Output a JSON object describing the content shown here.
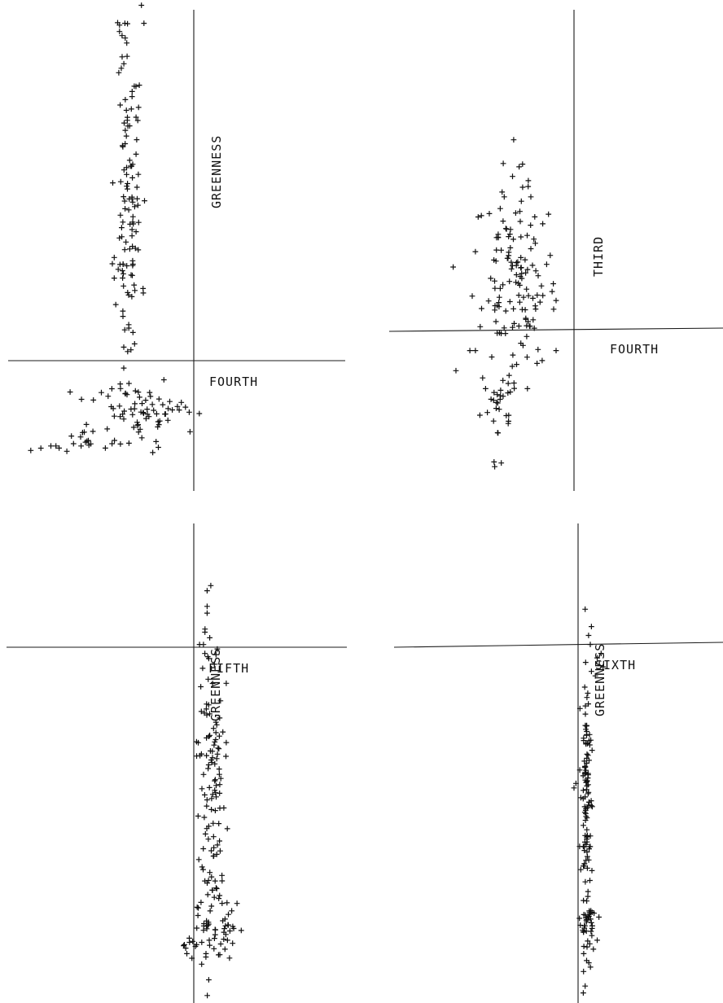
{
  "chart_data": [
    {
      "type": "scatter",
      "panel": "top-left",
      "xlabel": "FOURTH",
      "ylabel": "GREENNESS",
      "xlim": [
        -5,
        1.7
      ],
      "ylim": [
        -1.7,
        9
      ],
      "grid": false,
      "clusters": [
        {
          "cx": -2.6,
          "cy": 5.0,
          "sx": 0.13,
          "sy": 2.3,
          "n": 120
        },
        {
          "cx": -2.5,
          "cy": 0.1,
          "sx": 0.45,
          "sy": 0.45,
          "n": 55
        },
        {
          "cx": -3.2,
          "cy": -0.5,
          "sx": 0.5,
          "sy": 0.15,
          "n": 18
        },
        {
          "cx": -2.1,
          "cy": 0.05,
          "sx": 0.3,
          "sy": 0.12,
          "n": 14
        }
      ],
      "extra_points": [
        [
          -2.35,
          9.1
        ],
        [
          -2.3,
          8.7
        ],
        [
          -2.75,
          7.7
        ],
        [
          -2.8,
          7.6
        ],
        [
          -2.7,
          7.8
        ],
        [
          -4.55,
          -0.8
        ],
        [
          -4.35,
          -0.75
        ],
        [
          -4.15,
          -0.7
        ],
        [
          -4.05,
          -0.7
        ],
        [
          -3.7,
          -0.65
        ],
        [
          -3.55,
          -0.7
        ],
        [
          -1.4,
          0.05
        ],
        [
          -1.6,
          0.1
        ],
        [
          -1.2,
          0.02
        ]
      ],
      "seed": 11
    },
    {
      "type": "scatter",
      "panel": "top-right",
      "xlabel": "FOURTH",
      "ylabel": "THIRD",
      "xlim": [
        -3.5,
        2.5
      ],
      "ylim": [
        -3.6,
        3.6
      ],
      "grid": false,
      "clusters": [
        {
          "cx": -1.25,
          "cy": -0.5,
          "sx": 0.28,
          "sy": 0.7,
          "n": 135
        },
        {
          "cx": -1.5,
          "cy": -2.3,
          "sx": 0.18,
          "sy": 0.35,
          "n": 30
        }
      ],
      "extra_points": [
        [
          -1.45,
          1.3
        ],
        [
          -1.7,
          0.55
        ],
        [
          -1.9,
          0.5
        ],
        [
          -1.95,
          -0.02
        ],
        [
          -2.35,
          -0.25
        ],
        [
          -0.55,
          -0.5
        ],
        [
          -0.5,
          -0.75
        ],
        [
          -1.95,
          -1.5
        ],
        [
          -2.05,
          -1.5
        ],
        [
          -0.5,
          -1.5
        ],
        [
          -2.3,
          -1.8
        ],
        [
          -0.75,
          -1.65
        ]
      ],
      "seed": 23
    },
    {
      "type": "scatter",
      "panel": "bottom-left",
      "xlabel": "FIFTH",
      "ylabel": "GREENNESS",
      "xlim": [
        -5,
        1.7
      ],
      "ylim": [
        -1.7,
        9
      ],
      "grid": false,
      "clusters": [
        {
          "cx": -0.95,
          "cy": 3.0,
          "sx": 0.13,
          "sy": 1.9,
          "n": 130
        },
        {
          "cx": -1.05,
          "cy": -0.1,
          "sx": 0.28,
          "sy": 0.35,
          "n": 45
        }
      ],
      "extra_points": [
        [
          -1.05,
          7.5
        ],
        [
          -1.05,
          7.15
        ],
        [
          -1.05,
          7.0
        ],
        [
          -1.2,
          6.3
        ],
        [
          -1.0,
          6.45
        ],
        [
          -0.85,
          6.2
        ],
        [
          -1.5,
          -0.4
        ],
        [
          -1.45,
          -0.6
        ],
        [
          -1.35,
          -0.7
        ],
        [
          -0.7,
          -0.5
        ],
        [
          -0.65,
          -0.3
        ]
      ],
      "seed": 37
    },
    {
      "type": "scatter",
      "panel": "bottom-right",
      "xlabel": "SIXTH",
      "ylabel": "GREENNESS",
      "xlim": [
        -5,
        3.5
      ],
      "ylim": [
        -1.7,
        9
      ],
      "grid": false,
      "clusters": [
        {
          "cx": -0.02,
          "cy": 2.7,
          "sx": 0.07,
          "sy": 1.75,
          "n": 120
        },
        {
          "cx": 0.02,
          "cy": -0.05,
          "sx": 0.1,
          "sy": 0.3,
          "n": 30
        }
      ],
      "extra_points": [
        [
          0.1,
          6.7
        ],
        [
          0.07,
          6.3
        ],
        [
          0.25,
          6.0
        ],
        [
          0.35,
          6.1
        ],
        [
          0.4,
          5.8
        ],
        [
          0.2,
          5.6
        ],
        [
          0.1,
          5.7
        ],
        [
          -0.05,
          5.9
        ],
        [
          -0.3,
          3.2
        ],
        [
          -0.35,
          3.1
        ],
        [
          -0.2,
          3.5
        ],
        [
          0.25,
          -0.3
        ],
        [
          0.15,
          -0.5
        ],
        [
          -0.1,
          -0.6
        ]
      ],
      "seed": 53
    }
  ]
}
